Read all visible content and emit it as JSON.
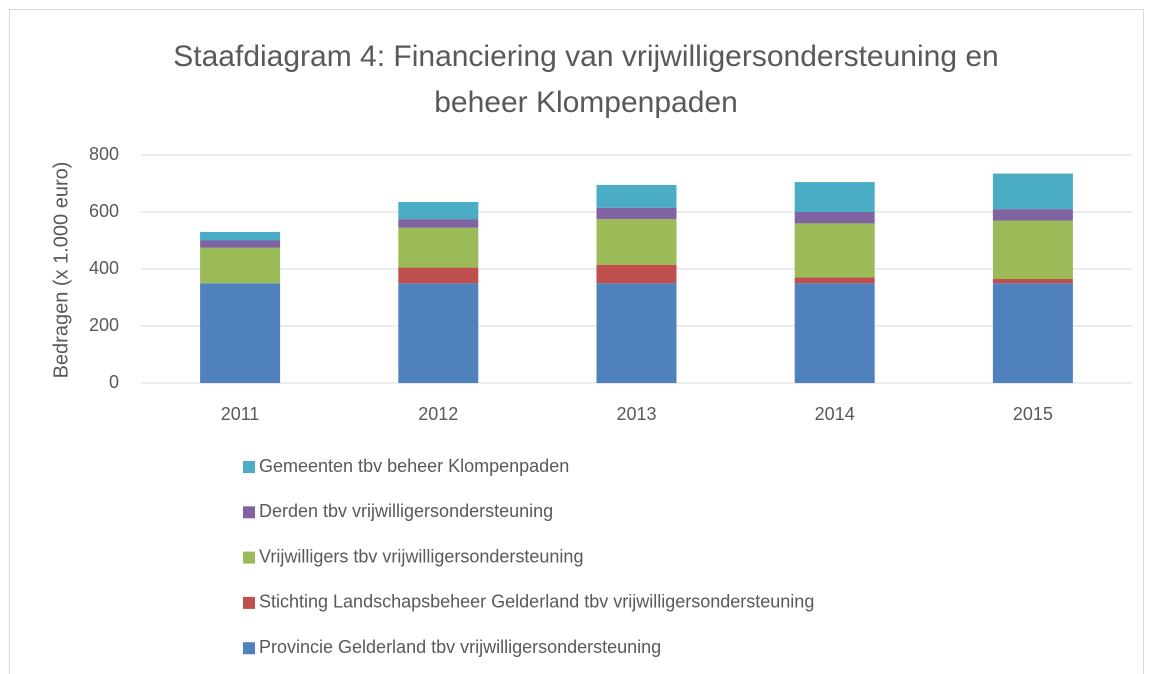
{
  "chart_data": {
    "type": "stacked_bar",
    "title": "Staafdiagram 4: Financiering van vrijwilligersondersteuning en beheer Klompenpaden",
    "y_label": "Bedragen (x 1.000 euro)",
    "categories": [
      "2011",
      "2012",
      "2013",
      "2014",
      "2015"
    ],
    "series": [
      {
        "name": "Provincie Gelderland tbv vrijwilligersondersteuning",
        "color": "#4f81bd",
        "values": [
          350,
          350,
          350,
          350,
          350
        ]
      },
      {
        "name": "Stichting Landschapsbeheer Gelderland tbv vrijwilligersondersteuning",
        "color": "#c0504d",
        "values": [
          0,
          55,
          65,
          20,
          15
        ]
      },
      {
        "name": "Vrijwilligers tbv vrijwilligersondersteuning",
        "color": "#9bbb59",
        "values": [
          125,
          140,
          160,
          190,
          205
        ]
      },
      {
        "name": "Derden tbv vrijwilligersondersteuning",
        "color": "#8064a2",
        "values": [
          25,
          30,
          40,
          40,
          40
        ]
      },
      {
        "name": "Gemeenten tbv beheer Klompenpaden",
        "color": "#4bacc6",
        "values": [
          30,
          60,
          80,
          105,
          125
        ]
      }
    ],
    "ylim": [
      0,
      800
    ],
    "yticks": [
      0,
      200,
      400,
      600,
      800
    ],
    "grid": true,
    "legend": "bottom"
  }
}
